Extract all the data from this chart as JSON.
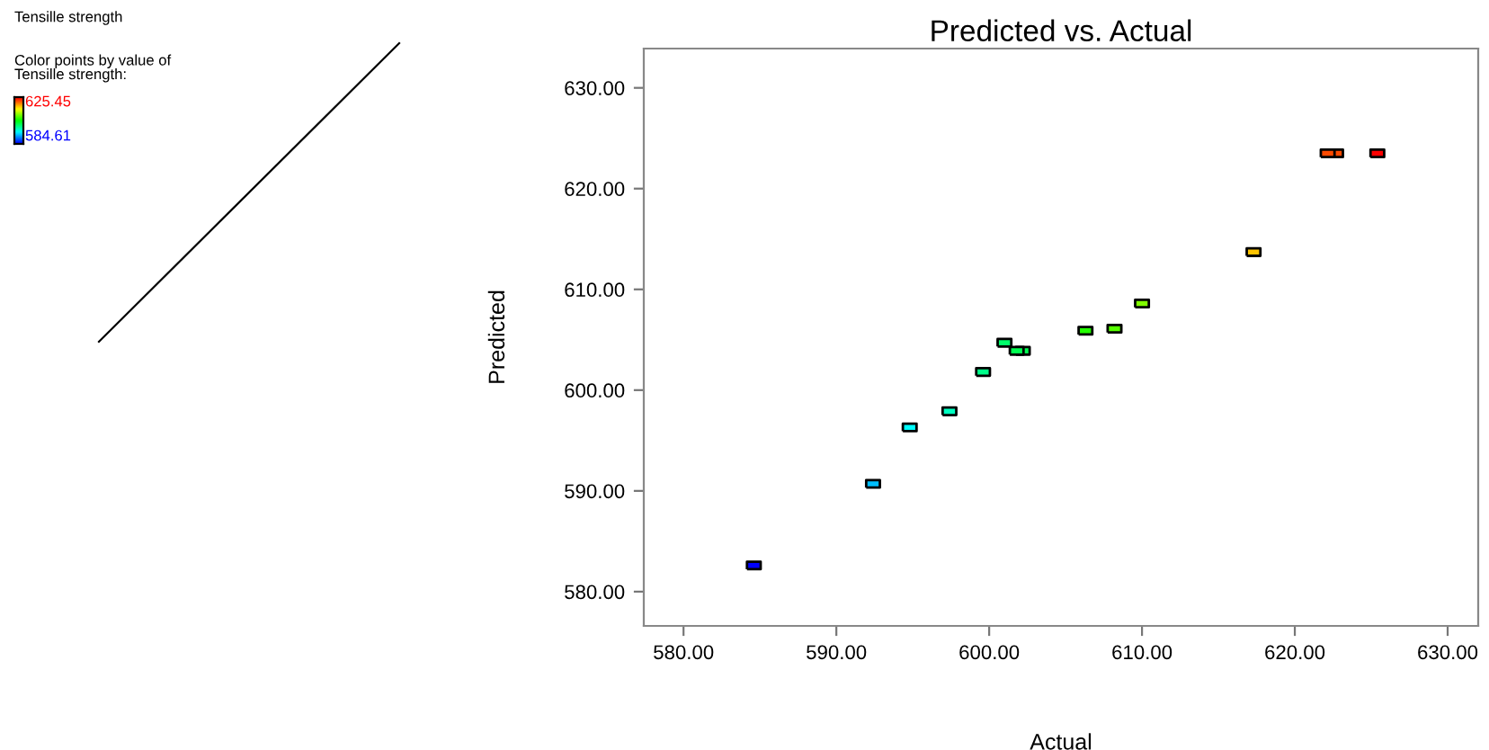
{
  "chart_data": {
    "type": "scatter",
    "title": "Predicted vs. Actual",
    "subtitle": "Tensille strength",
    "xlabel": "Actual",
    "ylabel": "Predicted",
    "annotations": [
      "Color points by value of\nTensille strength:",
      "625.45",
      "584.61"
    ],
    "x": [
      622.15,
      622.7,
      625.4,
      617.3,
      610.0,
      606.3,
      608.2,
      601.0,
      601.8,
      602.2,
      599.6,
      597.4,
      594.8,
      592.4,
      584.6
    ],
    "values": [
      623.5,
      623.5,
      623.5,
      613.7,
      608.6,
      605.9,
      606.1,
      604.7,
      603.9,
      603.9,
      601.8,
      597.9,
      596.3,
      590.7,
      582.6
    ],
    "colors": [
      "#ff4a00",
      "#ff4a00",
      "#ff0000",
      "#ffc400",
      "#80ff00",
      "#22ff00",
      "#55ff00",
      "#00ff6a",
      "#00ff50",
      "#00ff50",
      "#00ff8a",
      "#00ffc0",
      "#00ffff",
      "#00bfff",
      "#0000ff"
    ],
    "xlim": [
      577.4,
      632.0
    ],
    "xticks": [
      {
        "value": 580,
        "label": "580.00"
      },
      {
        "value": 590,
        "label": "590.00"
      },
      {
        "value": 600,
        "label": "600.00"
      },
      {
        "value": 610,
        "label": "610.00"
      },
      {
        "value": 620,
        "label": "620.00"
      },
      {
        "value": 630,
        "label": "630.00"
      }
    ],
    "ylim": [
      576.6,
      633.9
    ],
    "yticks": [
      {
        "value": 580,
        "label": "580.00"
      },
      {
        "value": 590,
        "label": "590.00"
      },
      {
        "value": 600,
        "label": "600.00"
      },
      {
        "value": 610,
        "label": "610.00"
      },
      {
        "value": 620,
        "label": "620.00"
      },
      {
        "value": 630,
        "label": "630.00"
      }
    ],
    "marker": "square"
  }
}
